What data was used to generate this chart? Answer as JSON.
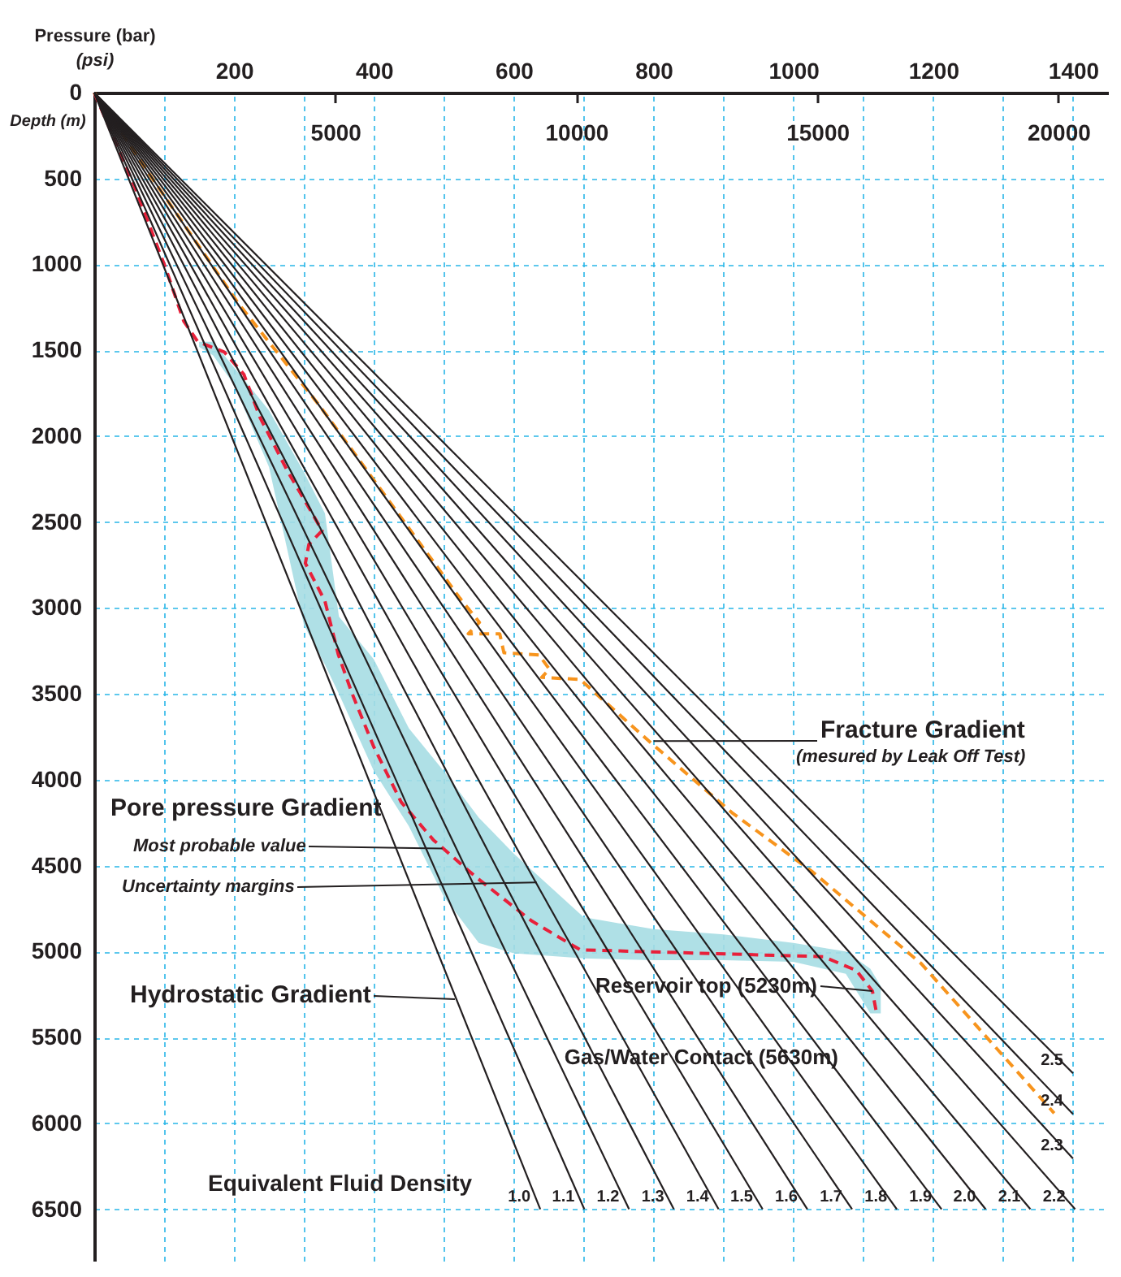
{
  "chart_data": {
    "type": "line",
    "xlabel": "Pressure (bar)",
    "x2label": "(psi)",
    "ylabel": "Depth (m)",
    "xlim": [
      0,
      1450
    ],
    "xticks": [
      {
        "value": 100,
        "label": null
      },
      200,
      {
        "value": 300,
        "label": null
      },
      400,
      {
        "value": 500,
        "label": null
      },
      600,
      {
        "value": 700,
        "label": null
      },
      800,
      {
        "value": 900,
        "label": null
      },
      1000,
      {
        "value": 1100,
        "label": null
      },
      1200,
      {
        "value": 1300,
        "label": null
      },
      1400
    ],
    "x2lim": [
      0,
      21030
    ],
    "x2ticks": [
      5000,
      10000,
      15000,
      20000
    ],
    "ylim": [
      6800,
      0
    ],
    "yticks": [
      0,
      500,
      1000,
      1500,
      2000,
      2500,
      3000,
      3500,
      4000,
      4500,
      5000,
      5500,
      6000,
      6500
    ],
    "grid": true,
    "series": [
      {
        "color": "#a6dde3",
        "x": [
          150,
          170,
          200,
          250,
          300,
          330,
          350,
          400,
          450,
          500,
          550,
          600,
          700,
          800,
          900,
          1000,
          1075,
          1110,
          1125
        ],
        "values": [
          null,
          null,
          null,
          null,
          null,
          null,
          null,
          null,
          null,
          null,
          null,
          null,
          null,
          null,
          null,
          null,
          null,
          null,
          null
        ],
        "lower": [
          1450,
          1450,
          1600,
          1850,
          2210,
          2450,
          3050,
          3300,
          3700,
          3950,
          4220,
          4430,
          4800,
          4870,
          4900,
          4950,
          5000,
          5100,
          5200
        ],
        "upper": [
          1480,
          1530,
          1700,
          2180,
          3100,
          3330,
          3500,
          3950,
          4270,
          4680,
          4950,
          5010,
          5040,
          5050,
          5050,
          5060,
          5130,
          5360,
          5360
        ]
      },
      {
        "color": "#e8203a",
        "line_style": "dashed",
        "x": [
          0,
          58,
          102,
          128,
          148,
          186,
          214,
          237,
          276,
          299,
          326,
          307,
          302,
          330,
          349,
          369,
          400,
          439,
          485,
          547,
          625,
          695,
          1043,
          1090,
          1113,
          1119
        ],
        "values": [
          0,
          550,
          1020,
          1330,
          1450,
          1510,
          1640,
          1890,
          2200,
          2360,
          2550,
          2630,
          2740,
          2960,
          3270,
          3500,
          3810,
          4130,
          4350,
          4570,
          4820,
          4990,
          5030,
          5110,
          5230,
          5360
        ]
      },
      {
        "color": "#f7941d",
        "line_style": "dashed",
        "x": [
          0,
          86,
          206,
          323,
          523,
          551,
          535,
          580,
          586,
          636,
          651,
          640,
          695,
          795,
          912,
          1028,
          1183,
          1373
        ],
        "values": [
          0,
          517,
          1227,
          1826,
          2943,
          3084,
          3150,
          3150,
          3261,
          3273,
          3356,
          3404,
          3416,
          3781,
          4191,
          4538,
          5071,
          5941
        ]
      },
      {
        "name": "1.0",
        "color": "#231f20",
        "x": [
          0,
          638
        ],
        "values": [
          0,
          6500
        ]
      },
      {
        "name": "1.1",
        "color": "#231f20",
        "x": [
          0,
          701
        ],
        "values": [
          0,
          6500
        ]
      },
      {
        "name": "1.2",
        "color": "#231f20",
        "x": [
          0,
          765
        ],
        "values": [
          0,
          6500
        ]
      },
      {
        "name": "1.3",
        "color": "#231f20",
        "x": [
          0,
          829
        ],
        "values": [
          0,
          6500
        ]
      },
      {
        "name": "1.4",
        "color": "#231f20",
        "x": [
          0,
          893
        ],
        "values": [
          0,
          6500
        ]
      },
      {
        "name": "1.5",
        "color": "#231f20",
        "x": [
          0,
          956
        ],
        "values": [
          0,
          6500
        ]
      },
      {
        "name": "1.6",
        "color": "#231f20",
        "x": [
          0,
          1020
        ],
        "values": [
          0,
          6500
        ]
      },
      {
        "name": "1.7",
        "color": "#231f20",
        "x": [
          0,
          1084
        ],
        "values": [
          0,
          6500
        ]
      },
      {
        "name": "1.8",
        "color": "#231f20",
        "x": [
          0,
          1148
        ],
        "values": [
          0,
          6500
        ]
      },
      {
        "name": "1.9",
        "color": "#231f20",
        "x": [
          0,
          1212
        ],
        "values": [
          0,
          6500
        ]
      },
      {
        "name": "2.0",
        "color": "#231f20",
        "x": [
          0,
          1275
        ],
        "values": [
          0,
          6500
        ]
      },
      {
        "name": "2.1",
        "color": "#231f20",
        "x": [
          0,
          1339
        ],
        "values": [
          0,
          6500
        ]
      },
      {
        "name": "2.2",
        "color": "#231f20",
        "x": [
          0,
          1403
        ],
        "values": [
          0,
          6500
        ]
      },
      {
        "name": "2.3",
        "color": "#231f20",
        "x": [
          0,
          1400
        ],
        "values": [
          0,
          6205
        ]
      },
      {
        "name": "2.4",
        "color": "#231f20",
        "x": [
          0,
          1400
        ],
        "values": [
          0,
          5946
        ]
      },
      {
        "name": "2.5",
        "color": "#231f20",
        "x": [
          0,
          1400
        ],
        "values": [
          0,
          5709
        ]
      }
    ],
    "annotations": [
      {
        "text": "Fracture Gradient",
        "x": 800,
        "y": 3775
      },
      "(mesured by Leak Off Test)",
      "Pore pressure Gradient",
      {
        "text": "Most probable value",
        "x": 498,
        "y": 4400
      },
      {
        "text": "Uncertainty margins",
        "x": 633,
        "y": 4597
      },
      "Hydrostatic Gradient",
      {
        "text": "Reservoir top (5230m)",
        "x": 1113,
        "y": 5230
      },
      "Gas/Water Contact (5630m)",
      "Equivalent Fluid Density"
    ]
  }
}
